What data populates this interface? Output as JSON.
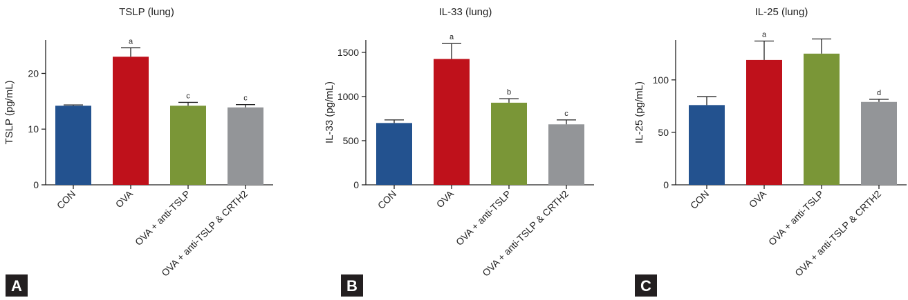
{
  "colors": [
    "#23528f",
    "#bf111b",
    "#7a9637",
    "#939598"
  ],
  "chart_data": [
    {
      "type": "bar",
      "panel": "A",
      "title": "TSLP (lung)",
      "ylabel": "TSLP (pg/mL)",
      "xlabel": "",
      "categories": [
        "CON",
        "OVA",
        "OVA + anti-TSLP",
        "OVA + anti-TSLP & CRTH2"
      ],
      "values": [
        14.2,
        23.0,
        14.2,
        13.9
      ],
      "errors": [
        0.15,
        1.6,
        0.6,
        0.5
      ],
      "significance": [
        "",
        "a",
        "c",
        "c"
      ],
      "ylim": [
        0,
        26
      ],
      "yticks": [
        0,
        10,
        20
      ]
    },
    {
      "type": "bar",
      "panel": "B",
      "title": "IL-33 (lung)",
      "ylabel": "IL-33 (pg/mL)",
      "xlabel": "",
      "categories": [
        "CON",
        "OVA",
        "OVA + anti-TSLP",
        "OVA + anti-TSLP & CRTH2"
      ],
      "values": [
        700,
        1425,
        930,
        685
      ],
      "errors": [
        35,
        175,
        45,
        50
      ],
      "significance": [
        "",
        "a",
        "b",
        "c"
      ],
      "ylim": [
        0,
        1640
      ],
      "yticks": [
        0,
        500,
        1000,
        1500
      ]
    },
    {
      "type": "bar",
      "panel": "C",
      "title": "IL-25 (lung)",
      "ylabel": "IL-25 (pg/mL)",
      "xlabel": "",
      "categories": [
        "CON",
        "OVA",
        "OVA + anti-TSLP",
        "OVA + anti-TSLP & CRTH2"
      ],
      "values": [
        76,
        119,
        125,
        79
      ],
      "errors": [
        8,
        18,
        14,
        2.5
      ],
      "significance": [
        "",
        "a",
        "",
        "d"
      ],
      "ylim": [
        0,
        138
      ],
      "yticks": [
        0,
        50,
        100
      ]
    }
  ]
}
